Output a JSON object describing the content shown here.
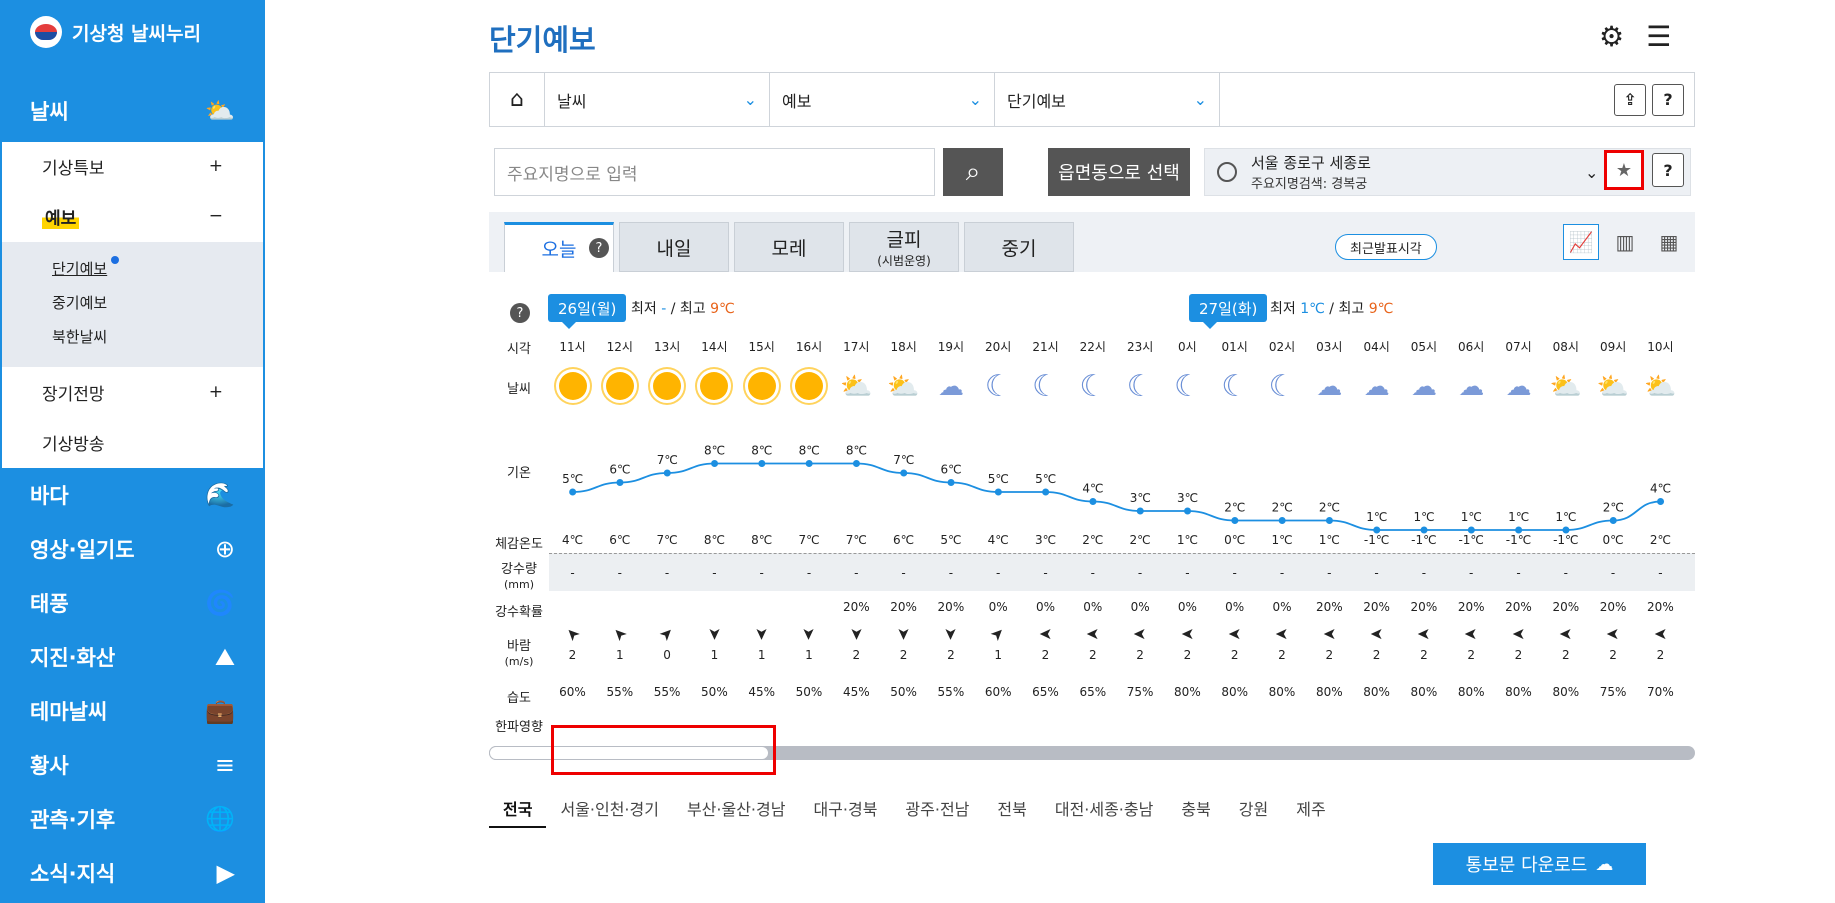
{
  "app": {
    "logo": "기상청 날씨누리"
  },
  "sidebar": {
    "weather": "날씨",
    "sub": [
      {
        "label": "기상특보",
        "sign": "+"
      },
      {
        "label": "예보",
        "sign": "−"
      },
      {
        "label": "장기전망",
        "sign": "+"
      },
      {
        "label": "기상방송",
        "sign": ""
      }
    ],
    "subsub": [
      "단기예보",
      "중기예보",
      "북한날씨"
    ],
    "sections": [
      "바다",
      "영상·일기도",
      "태풍",
      "지진·화산",
      "테마날씨",
      "황사",
      "관측·기후",
      "소식·지식"
    ]
  },
  "page": {
    "title": "단기예보"
  },
  "breadcrumb": {
    "l1": "날씨",
    "l2": "예보",
    "l3": "단기예보",
    "help": "?"
  },
  "search": {
    "placeholder": "주요지명으로 입력",
    "emd_button": "읍면동으로 선택"
  },
  "location": {
    "line1": "서울 종로구 세종로",
    "line2": "주요지명검색: 경복궁",
    "help": "?"
  },
  "tabs": [
    {
      "label": "오늘",
      "sub": ""
    },
    {
      "label": "내일",
      "sub": ""
    },
    {
      "label": "모레",
      "sub": ""
    },
    {
      "label": "글피",
      "sub": "(시범운영)"
    },
    {
      "label": "중기",
      "sub": ""
    }
  ],
  "latest_button": "최근발표시각",
  "days": [
    {
      "tag": "26일(월)",
      "min_label": "최저",
      "min": "-",
      "max_label": "최고",
      "max": "9℃"
    },
    {
      "tag": "27일(화)",
      "min_label": "최저",
      "min": "1℃",
      "max_label": "최고",
      "max": "9℃"
    }
  ],
  "row_labels": {
    "time": "시각",
    "weather": "날씨",
    "temp": "기온",
    "feels": "체감온도",
    "precip": "강수량",
    "precip_unit": "(mm)",
    "prob": "강수확률",
    "wind": "바람",
    "wind_unit": "(m/s)",
    "humidity": "습도",
    "cold": "한파영향"
  },
  "hours": [
    {
      "time": "11시",
      "sky": "sun",
      "temp": "5℃",
      "t": 5,
      "feels": "4℃",
      "precip": "-",
      "prob": "",
      "wind": "2",
      "dir": "➤",
      "rot": 225,
      "hum": "60%"
    },
    {
      "time": "12시",
      "sky": "sun",
      "temp": "6℃",
      "t": 6,
      "feels": "6℃",
      "precip": "-",
      "prob": "",
      "wind": "1",
      "dir": "➤",
      "rot": 225,
      "hum": "55%"
    },
    {
      "time": "13시",
      "sky": "sun",
      "temp": "7℃",
      "t": 7,
      "feels": "7℃",
      "precip": "-",
      "prob": "",
      "wind": "0",
      "dir": "➤",
      "rot": -45,
      "hum": "55%"
    },
    {
      "time": "14시",
      "sky": "sun",
      "temp": "8℃",
      "t": 8,
      "feels": "8℃",
      "precip": "-",
      "prob": "",
      "wind": "1",
      "dir": "➤",
      "rot": 90,
      "hum": "50%"
    },
    {
      "time": "15시",
      "sky": "sun",
      "temp": "8℃",
      "t": 8,
      "feels": "8℃",
      "precip": "-",
      "prob": "",
      "wind": "1",
      "dir": "➤",
      "rot": 90,
      "hum": "45%"
    },
    {
      "time": "16시",
      "sky": "sun",
      "temp": "8℃",
      "t": 8,
      "feels": "7℃",
      "precip": "-",
      "prob": "",
      "wind": "1",
      "dir": "➤",
      "rot": 90,
      "hum": "50%"
    },
    {
      "time": "17시",
      "sky": "cloudsun",
      "temp": "8℃",
      "t": 8,
      "feels": "7℃",
      "precip": "-",
      "prob": "20%",
      "wind": "2",
      "dir": "➤",
      "rot": 90,
      "hum": "45%"
    },
    {
      "time": "18시",
      "sky": "cloudsun",
      "temp": "7℃",
      "t": 7,
      "feels": "6℃",
      "precip": "-",
      "prob": "20%",
      "wind": "2",
      "dir": "➤",
      "rot": 90,
      "hum": "50%"
    },
    {
      "time": "19시",
      "sky": "cloudmoon",
      "temp": "6℃",
      "t": 6,
      "feels": "5℃",
      "precip": "-",
      "prob": "20%",
      "wind": "2",
      "dir": "➤",
      "rot": 90,
      "hum": "55%"
    },
    {
      "time": "20시",
      "sky": "moon",
      "temp": "5℃",
      "t": 5,
      "feels": "4℃",
      "precip": "-",
      "prob": "0%",
      "wind": "1",
      "dir": "➤",
      "rot": -45,
      "hum": "60%"
    },
    {
      "time": "21시",
      "sky": "moon",
      "temp": "5℃",
      "t": 5,
      "feels": "3℃",
      "precip": "-",
      "prob": "0%",
      "wind": "2",
      "dir": "➤",
      "rot": 180,
      "hum": "65%"
    },
    {
      "time": "22시",
      "sky": "moon",
      "temp": "4℃",
      "t": 4,
      "feels": "2℃",
      "precip": "-",
      "prob": "0%",
      "wind": "2",
      "dir": "➤",
      "rot": 180,
      "hum": "65%"
    },
    {
      "time": "23시",
      "sky": "moon",
      "temp": "3℃",
      "t": 3,
      "feels": "2℃",
      "precip": "-",
      "prob": "0%",
      "wind": "2",
      "dir": "➤",
      "rot": 180,
      "hum": "75%"
    },
    {
      "time": "0시",
      "sky": "moon",
      "temp": "3℃",
      "t": 3,
      "feels": "1℃",
      "precip": "-",
      "prob": "0%",
      "wind": "2",
      "dir": "➤",
      "rot": 180,
      "hum": "80%"
    },
    {
      "time": "01시",
      "sky": "moon",
      "temp": "2℃",
      "t": 2,
      "feels": "0℃",
      "precip": "-",
      "prob": "0%",
      "wind": "2",
      "dir": "➤",
      "rot": 180,
      "hum": "80%"
    },
    {
      "time": "02시",
      "sky": "moon",
      "temp": "2℃",
      "t": 2,
      "feels": "1℃",
      "precip": "-",
      "prob": "0%",
      "wind": "2",
      "dir": "➤",
      "rot": 180,
      "hum": "80%"
    },
    {
      "time": "03시",
      "sky": "cloudmoon",
      "temp": "2℃",
      "t": 2,
      "feels": "1℃",
      "precip": "-",
      "prob": "20%",
      "wind": "2",
      "dir": "➤",
      "rot": 180,
      "hum": "80%"
    },
    {
      "time": "04시",
      "sky": "cloudmoon",
      "temp": "1℃",
      "t": 1,
      "feels": "-1℃",
      "precip": "-",
      "prob": "20%",
      "wind": "2",
      "dir": "➤",
      "rot": 180,
      "hum": "80%"
    },
    {
      "time": "05시",
      "sky": "cloudmoon",
      "temp": "1℃",
      "t": 1,
      "feels": "-1℃",
      "precip": "-",
      "prob": "20%",
      "wind": "2",
      "dir": "➤",
      "rot": 180,
      "hum": "80%"
    },
    {
      "time": "06시",
      "sky": "cloudmoon",
      "temp": "1℃",
      "t": 1,
      "feels": "-1℃",
      "precip": "-",
      "prob": "20%",
      "wind": "2",
      "dir": "➤",
      "rot": 180,
      "hum": "80%"
    },
    {
      "time": "07시",
      "sky": "cloudmoon",
      "temp": "1℃",
      "t": 1,
      "feels": "-1℃",
      "precip": "-",
      "prob": "20%",
      "wind": "2",
      "dir": "➤",
      "rot": 180,
      "hum": "80%"
    },
    {
      "time": "08시",
      "sky": "cloudsun",
      "temp": "1℃",
      "t": 1,
      "feels": "-1℃",
      "precip": "-",
      "prob": "20%",
      "wind": "2",
      "dir": "➤",
      "rot": 180,
      "hum": "80%"
    },
    {
      "time": "09시",
      "sky": "cloudsun",
      "temp": "2℃",
      "t": 2,
      "feels": "0℃",
      "precip": "-",
      "prob": "20%",
      "wind": "2",
      "dir": "➤",
      "rot": 180,
      "hum": "75%"
    },
    {
      "time": "10시",
      "sky": "cloudsun",
      "temp": "4℃",
      "t": 4,
      "feels": "2℃",
      "precip": "-",
      "prob": "20%",
      "wind": "2",
      "dir": "➤",
      "rot": 180,
      "hum": "70%"
    }
  ],
  "regions": [
    "전국",
    "서울·인천·경기",
    "부산·울산·경남",
    "대구·경북",
    "광주·전남",
    "전북",
    "대전·세종·충남",
    "충북",
    "강원",
    "제주"
  ],
  "download": "통보문 다운로드",
  "colors": {
    "brand": "#1c8fe1",
    "line": "#1c8fe1",
    "max": "#e8631a"
  },
  "icons": {
    "sun": "☀",
    "moon": "☾",
    "cloudsun": "⛅",
    "cloudmoon": "☁"
  }
}
